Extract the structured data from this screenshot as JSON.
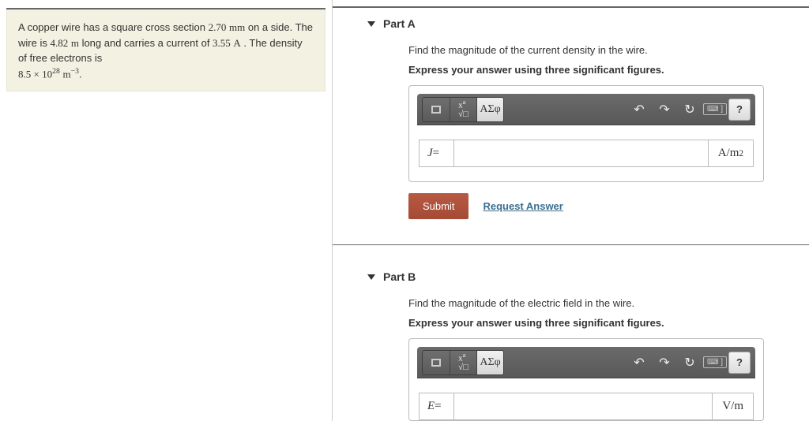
{
  "problem": {
    "text_prefix": "A copper wire has a square cross section ",
    "side_value": "2.70",
    "side_unit": "mm",
    "text_mid1": " on a side. The wire is ",
    "length_value": "4.82",
    "length_unit": "m",
    "text_mid2": " long and carries a current of ",
    "current_value": "3.55",
    "current_unit": "A",
    "text_mid3": " . The density of free electrons is ",
    "density_coeff": "8.5",
    "density_exp": "28",
    "density_unit_base": "m",
    "density_unit_exp": "−3",
    "text_suffix": "."
  },
  "partA": {
    "title": "Part A",
    "prompt": "Find the magnitude of the current density in the wire.",
    "instruction": "Express your answer using three significant figures.",
    "lhs_var": "J",
    "equals": " = ",
    "unit_base": "A/m",
    "unit_exp": "2"
  },
  "partB": {
    "title": "Part B",
    "prompt": "Find the magnitude of the electric field in the wire.",
    "instruction": "Express your answer using three significant figures.",
    "lhs_var": "E",
    "equals": " = ",
    "unit_label": "V/m"
  },
  "toolbar": {
    "greek_label": "ΑΣφ",
    "undo": "↶",
    "redo": "↷",
    "reset": "↻",
    "help": "?",
    "keyboard": "⌨ ]"
  },
  "actions": {
    "submit": "Submit",
    "request": "Request Answer"
  },
  "colors": {
    "problem_bg": "#f3f1e2",
    "submit_bg": "#b1533c",
    "link": "#3b6e8f",
    "toolbar_bg": "#5e5e5e"
  }
}
